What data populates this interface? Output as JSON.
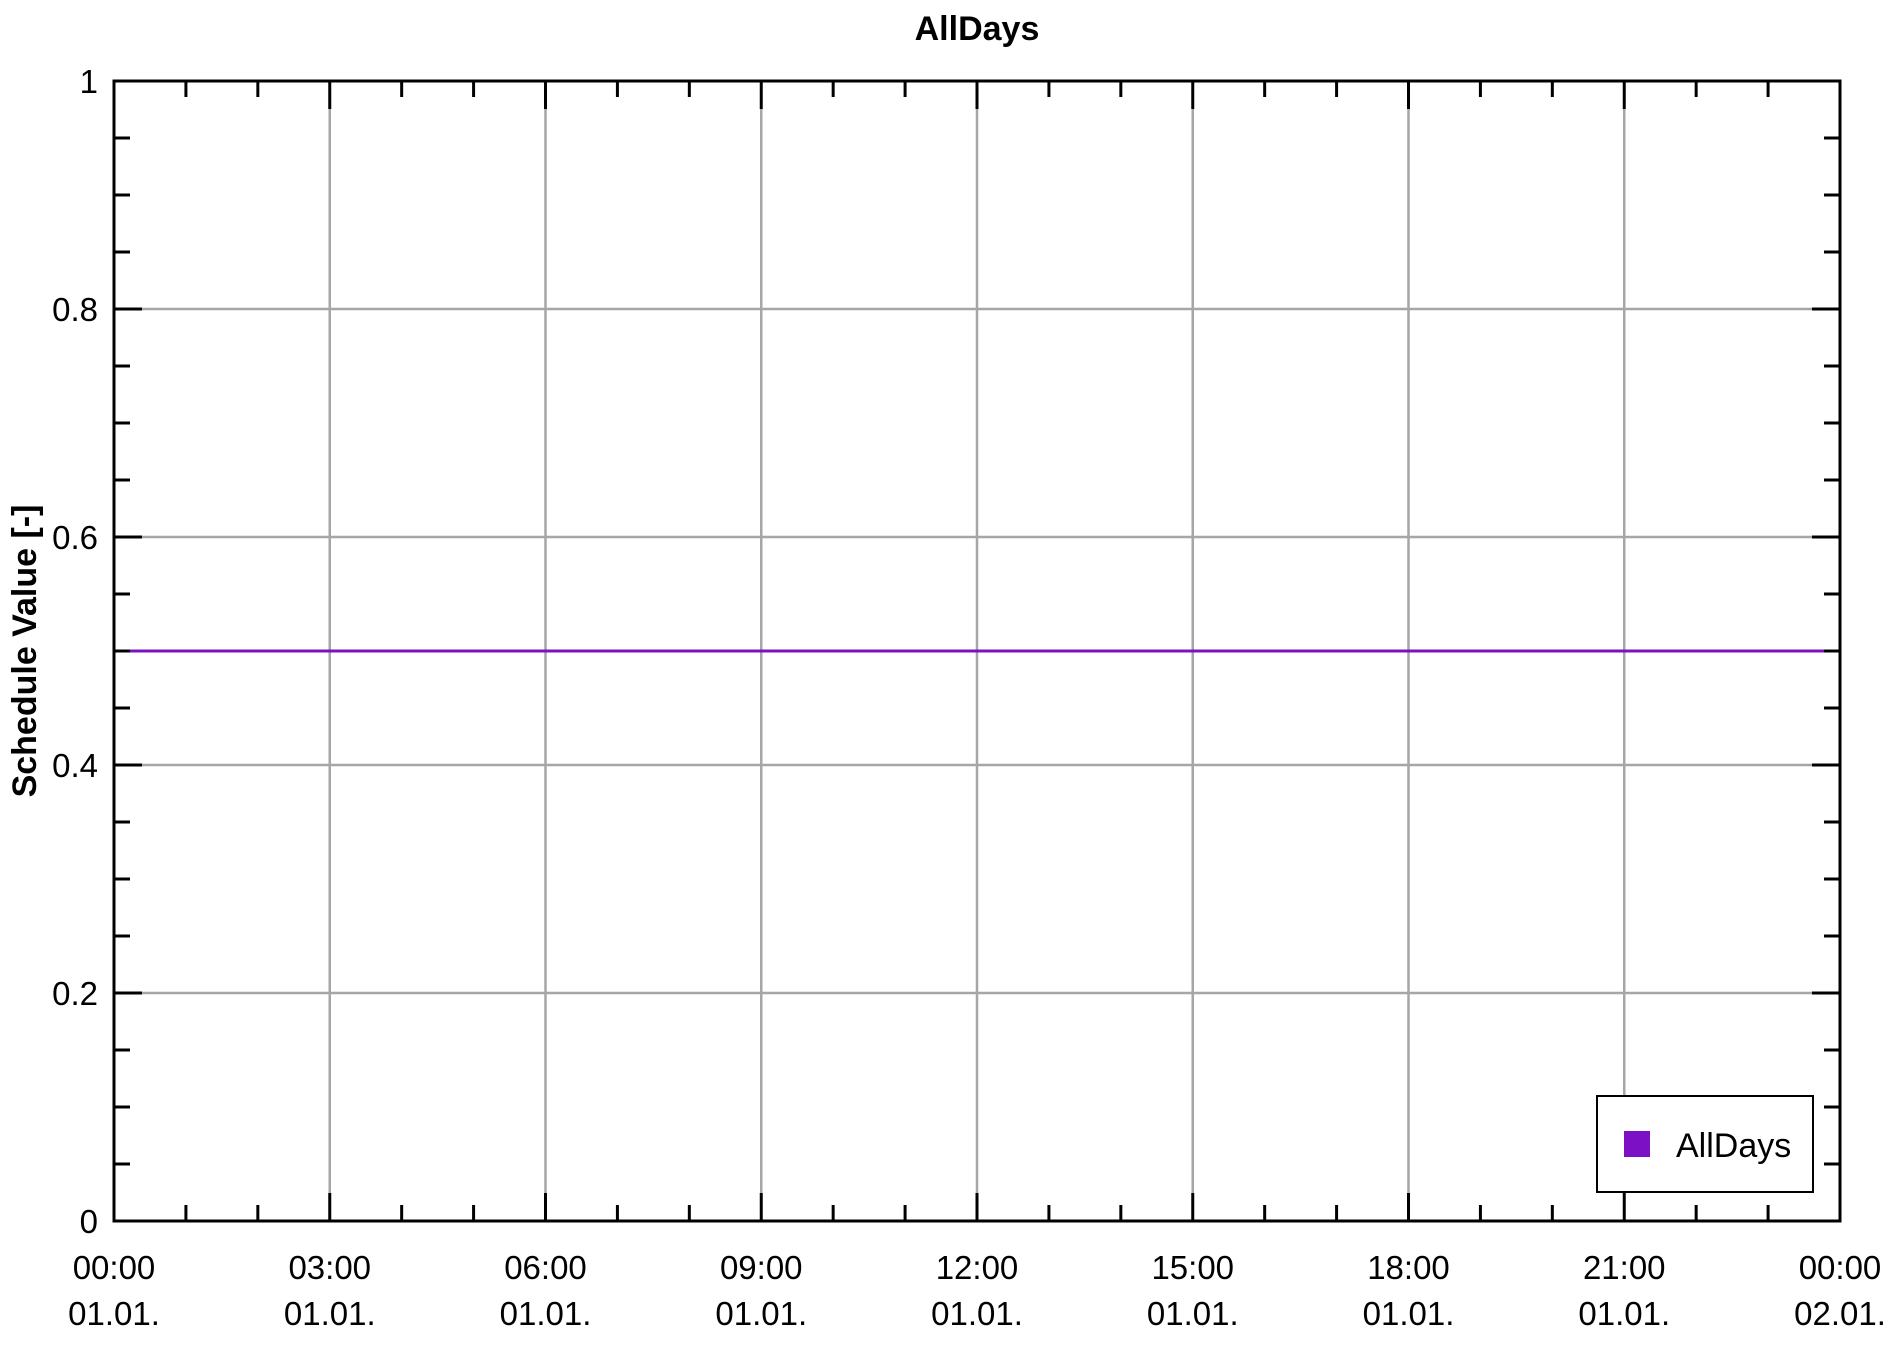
{
  "chart_data": {
    "type": "line",
    "title": "AllDays",
    "ylabel": "Schedule Value [-]",
    "xlabel": "",
    "ylim": [
      0,
      1
    ],
    "y_ticks": [
      {
        "value": 0,
        "label": "0"
      },
      {
        "value": 0.2,
        "label": "0.2"
      },
      {
        "value": 0.4,
        "label": "0.4"
      },
      {
        "value": 0.6,
        "label": "0.6"
      },
      {
        "value": 0.8,
        "label": "0.8"
      },
      {
        "value": 1,
        "label": "1"
      }
    ],
    "xlim": [
      "01.01. 00:00",
      "02.01. 00:00"
    ],
    "x_ticks": [
      {
        "time": "00:00",
        "date": "01.01."
      },
      {
        "time": "03:00",
        "date": "01.01."
      },
      {
        "time": "06:00",
        "date": "01.01."
      },
      {
        "time": "09:00",
        "date": "01.01."
      },
      {
        "time": "12:00",
        "date": "01.01."
      },
      {
        "time": "15:00",
        "date": "01.01."
      },
      {
        "time": "18:00",
        "date": "01.01."
      },
      {
        "time": "21:00",
        "date": "01.01."
      },
      {
        "time": "00:00",
        "date": "02.01."
      }
    ],
    "grid": true,
    "legend_position": "bottom-right",
    "series": [
      {
        "name": "AllDays",
        "color": "#7b10c4",
        "points": [
          {
            "x": "01.01. 00:00",
            "y": 0.5
          },
          {
            "x": "02.01. 00:00",
            "y": 0.5
          }
        ]
      }
    ]
  }
}
